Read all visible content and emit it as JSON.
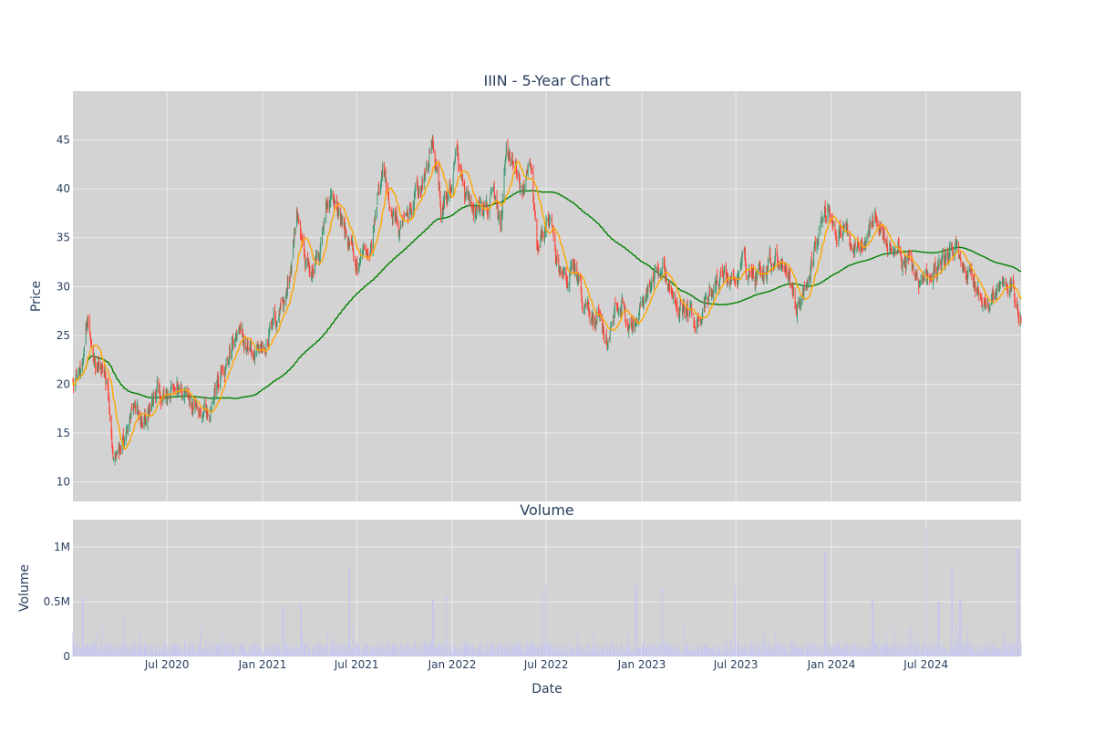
{
  "chart_data": [
    {
      "type": "candlestick",
      "title": "IIIN - 5-Year Chart",
      "xlabel": "",
      "ylabel": "Price",
      "ylim": [
        8,
        50
      ],
      "yticks": [
        10,
        15,
        20,
        25,
        30,
        35,
        40,
        45
      ],
      "grid": true,
      "legend": "none",
      "colors": {
        "background": "#d3d3d3",
        "grid": "#ececec",
        "up": "#3d9970",
        "down": "#ff4136",
        "ma_short": "#ffa500",
        "ma_long": "#008000"
      },
      "series": [
        {
          "type": "ohlc",
          "approx_close_path": [
            [
              "2020-01-02",
              21.0
            ],
            [
              "2020-01-20",
              21.5
            ],
            [
              "2020-01-27",
              25.5
            ],
            [
              "2020-02-10",
              23.0
            ],
            [
              "2020-02-25",
              22.0
            ],
            [
              "2020-03-09",
              19.0
            ],
            [
              "2020-03-18",
              12.5
            ],
            [
              "2020-03-28",
              12.0
            ],
            [
              "2020-04-10",
              14.5
            ],
            [
              "2020-04-25",
              16.5
            ],
            [
              "2020-05-15",
              16.0
            ],
            [
              "2020-06-01",
              17.5
            ],
            [
              "2020-06-15",
              19.5
            ],
            [
              "2020-07-01",
              18.0
            ],
            [
              "2020-07-20",
              19.5
            ],
            [
              "2020-08-10",
              19.0
            ],
            [
              "2020-09-01",
              18.5
            ],
            [
              "2020-09-20",
              18.0
            ],
            [
              "2020-10-05",
              20.0
            ],
            [
              "2020-10-25",
              22.0
            ],
            [
              "2020-11-10",
              24.5
            ],
            [
              "2020-11-25",
              24.0
            ],
            [
              "2020-12-15",
              23.0
            ],
            [
              "2021-01-05",
              24.5
            ],
            [
              "2021-01-25",
              26.5
            ],
            [
              "2021-02-10",
              29.0
            ],
            [
              "2021-02-25",
              32.0
            ],
            [
              "2021-03-08",
              38.0
            ],
            [
              "2021-03-20",
              33.0
            ],
            [
              "2021-04-05",
              31.5
            ],
            [
              "2021-04-20",
              32.0
            ],
            [
              "2021-05-05",
              38.0
            ],
            [
              "2021-05-15",
              40.0
            ],
            [
              "2021-05-28",
              37.5
            ],
            [
              "2021-06-15",
              35.0
            ],
            [
              "2021-06-30",
              32.0
            ],
            [
              "2021-07-15",
              33.5
            ],
            [
              "2021-07-30",
              34.0
            ],
            [
              "2021-08-10",
              39.0
            ],
            [
              "2021-08-20",
              42.0
            ],
            [
              "2021-09-05",
              38.0
            ],
            [
              "2021-09-25",
              35.0
            ],
            [
              "2021-10-10",
              38.0
            ],
            [
              "2021-10-25",
              39.5
            ],
            [
              "2021-11-10",
              41.0
            ],
            [
              "2021-11-25",
              45.0
            ],
            [
              "2021-12-10",
              38.0
            ],
            [
              "2021-12-25",
              39.5
            ],
            [
              "2022-01-10",
              43.0
            ],
            [
              "2022-01-25",
              39.0
            ],
            [
              "2022-02-10",
              36.5
            ],
            [
              "2022-02-25",
              38.0
            ],
            [
              "2022-03-10",
              37.5
            ],
            [
              "2022-03-25",
              39.0
            ],
            [
              "2022-04-05",
              36.0
            ],
            [
              "2022-04-15",
              44.0
            ],
            [
              "2022-04-25",
              43.0
            ],
            [
              "2022-05-05",
              41.0
            ],
            [
              "2022-05-20",
              39.0
            ],
            [
              "2022-06-01",
              43.0
            ],
            [
              "2022-06-15",
              34.0
            ],
            [
              "2022-06-30",
              36.0
            ],
            [
              "2022-07-10",
              38.0
            ],
            [
              "2022-07-25",
              31.0
            ],
            [
              "2022-08-10",
              30.0
            ],
            [
              "2022-08-25",
              32.0
            ],
            [
              "2022-09-10",
              28.0
            ],
            [
              "2022-09-25",
              27.0
            ],
            [
              "2022-10-10",
              27.5
            ],
            [
              "2022-10-25",
              25.0
            ],
            [
              "2022-11-10",
              27.0
            ],
            [
              "2022-11-25",
              28.5
            ],
            [
              "2022-12-10",
              25.5
            ],
            [
              "2022-12-25",
              27.0
            ],
            [
              "2023-01-10",
              28.5
            ],
            [
              "2023-01-25",
              29.5
            ],
            [
              "2023-02-10",
              31.0
            ],
            [
              "2023-02-25",
              30.0
            ],
            [
              "2023-03-10",
              29.5
            ],
            [
              "2023-03-25",
              28.0
            ],
            [
              "2023-04-10",
              27.0
            ],
            [
              "2023-04-25",
              27.5
            ],
            [
              "2023-05-10",
              28.0
            ],
            [
              "2023-05-25",
              30.0
            ],
            [
              "2023-06-10",
              31.5
            ],
            [
              "2023-06-25",
              30.5
            ],
            [
              "2023-07-10",
              31.5
            ],
            [
              "2023-07-25",
              32.0
            ],
            [
              "2023-08-10",
              31.0
            ],
            [
              "2023-08-25",
              32.5
            ],
            [
              "2023-09-10",
              33.5
            ],
            [
              "2023-09-25",
              33.0
            ],
            [
              "2023-10-10",
              32.5
            ],
            [
              "2023-10-25",
              28.0
            ],
            [
              "2023-11-10",
              29.5
            ],
            [
              "2023-11-25",
              33.5
            ],
            [
              "2023-12-10",
              36.0
            ],
            [
              "2023-12-25",
              38.5
            ],
            [
              "2024-01-10",
              36.0
            ],
            [
              "2024-01-25",
              35.5
            ],
            [
              "2024-02-10",
              34.5
            ],
            [
              "2024-02-25",
              35.0
            ],
            [
              "2024-03-10",
              36.5
            ],
            [
              "2024-03-25",
              37.5
            ],
            [
              "2024-04-10",
              35.0
            ],
            [
              "2024-04-25",
              34.0
            ],
            [
              "2024-05-10",
              33.5
            ],
            [
              "2024-05-25",
              32.5
            ],
            [
              "2024-06-10",
              31.5
            ],
            [
              "2024-06-25",
              30.5
            ],
            [
              "2024-07-10",
              30.0
            ],
            [
              "2024-07-25",
              32.0
            ],
            [
              "2024-08-10",
              33.0
            ],
            [
              "2024-08-25",
              34.0
            ],
            [
              "2024-09-10",
              32.5
            ],
            [
              "2024-09-25",
              31.0
            ],
            [
              "2024-10-10",
              29.5
            ],
            [
              "2024-10-25",
              28.0
            ],
            [
              "2024-11-10",
              29.0
            ],
            [
              "2024-11-25",
              30.0
            ],
            [
              "2024-12-10",
              29.5
            ],
            [
              "2024-12-31",
              27.0
            ]
          ]
        }
      ]
    },
    {
      "type": "bar",
      "title": "Volume",
      "xlabel": "Date",
      "ylabel": "Volume",
      "ylim": [
        0,
        1250000
      ],
      "yticks": [
        0,
        500000,
        1000000
      ],
      "ytick_labels": [
        "0",
        "0.5M",
        "1M"
      ],
      "grid": true,
      "colors": {
        "bar": "#c7c7ef"
      },
      "xticks": [
        "2020-07-01",
        "2021-01-01",
        "2021-07-01",
        "2022-01-01",
        "2022-07-01",
        "2023-01-01",
        "2023-07-01",
        "2024-01-01",
        "2024-07-01"
      ],
      "xtick_labels": [
        "Jul 2020",
        "Jan 2021",
        "Jul 2021",
        "Jan 2022",
        "Jul 2022",
        "Jan 2023",
        "Jul 2023",
        "Jan 2024",
        "Jul 2024"
      ],
      "xlim": [
        "2020-01-02",
        "2024-12-31"
      ],
      "spikes": [
        [
          "2020-01-20",
          540000
        ],
        [
          "2020-04-10",
          360000
        ],
        [
          "2020-09-05",
          270000
        ],
        [
          "2021-02-10",
          460000
        ],
        [
          "2021-03-15",
          480000
        ],
        [
          "2021-06-18",
          820000
        ],
        [
          "2021-11-25",
          520000
        ],
        [
          "2021-12-20",
          560000
        ],
        [
          "2022-06-25",
          600000
        ],
        [
          "2022-07-01",
          650000
        ],
        [
          "2022-12-20",
          650000
        ],
        [
          "2023-02-10",
          620000
        ],
        [
          "2023-06-30",
          650000
        ],
        [
          "2023-12-20",
          950000
        ],
        [
          "2024-03-20",
          520000
        ],
        [
          "2024-06-30",
          1180000
        ],
        [
          "2024-07-25",
          500000
        ],
        [
          "2024-08-20",
          800000
        ],
        [
          "2024-09-05",
          520000
        ],
        [
          "2024-12-25",
          980000
        ]
      ]
    }
  ]
}
